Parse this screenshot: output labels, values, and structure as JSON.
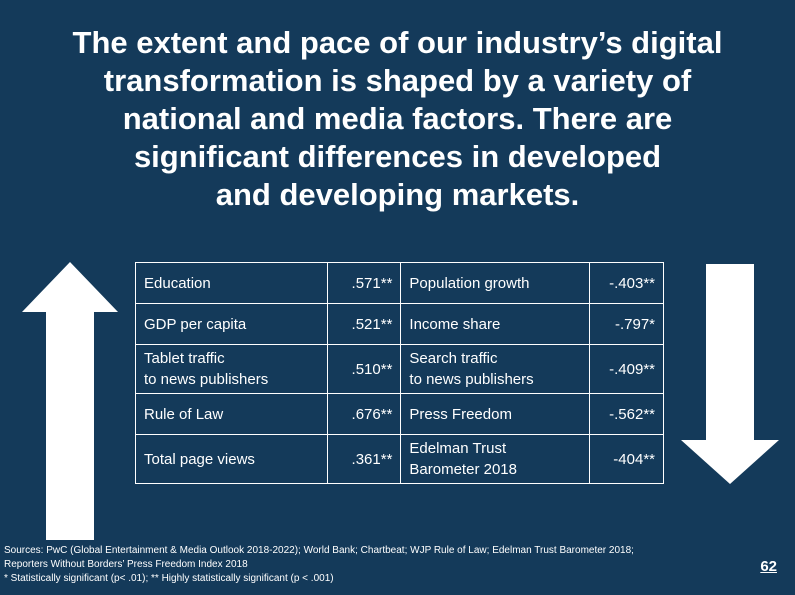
{
  "title_lines": [
    "The extent and pace of our industry’s digital",
    "transformation is shaped by a variety of",
    "national and media factors. There are",
    "significant differences in developed",
    "and developing markets."
  ],
  "rows": [
    {
      "positive": [
        "Education"
      ],
      "positive_value": ".571**",
      "negative": [
        "Population growth"
      ],
      "negative_value": "-.403**"
    },
    {
      "positive": [
        "GDP per capita"
      ],
      "positive_value": ".521**",
      "negative": [
        "Income share"
      ],
      "negative_value": "-.797*"
    },
    {
      "positive": [
        "Tablet traffic",
        "to news publishers"
      ],
      "positive_value": ".510**",
      "negative": [
        "Search traffic",
        "to news publishers"
      ],
      "negative_value": "-.409**"
    },
    {
      "positive": [
        "Rule of Law"
      ],
      "positive_value": ".676**",
      "negative": [
        "Press Freedom"
      ],
      "negative_value": "-.562**"
    },
    {
      "positive": [
        "Total page views"
      ],
      "positive_value": ".361**",
      "negative": [
        "Edelman Trust",
        "Barometer 2018"
      ],
      "negative_value": "-404**"
    }
  ],
  "sources_lines": [
    "Sources: PwC (Global Entertainment & Media Outlook 2018-2022); World Bank; Chartbeat; WJP Rule of Law; Edelman Trust Barometer 2018;",
    "Reporters Without Borders’ Press Freedom Index 2018",
    "* Statistically significant (p< .01); ** Highly statistically significant (p < .001)"
  ],
  "page_number": "62",
  "icons": {
    "up": "arrow-up-icon",
    "down": "arrow-down-icon"
  },
  "colors": {
    "background": "#143a5a",
    "text": "#ffffff"
  }
}
